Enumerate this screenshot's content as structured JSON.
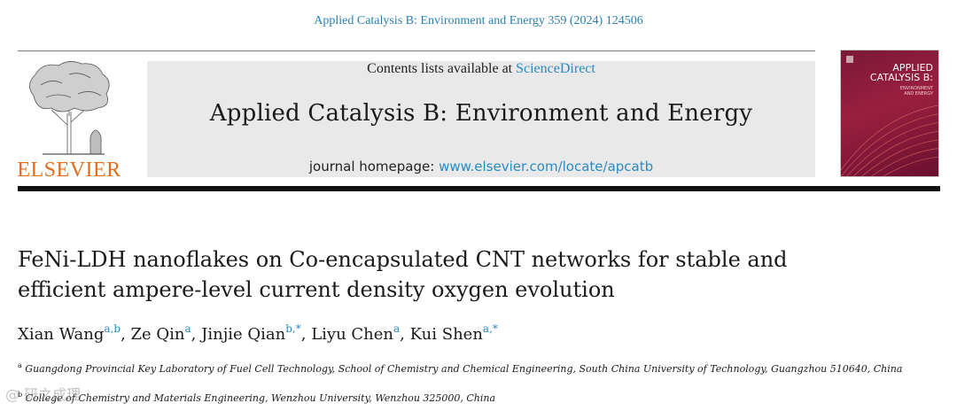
{
  "running_head": "Applied Catalysis B: Environment and Energy 359 (2024) 124506",
  "publisher": {
    "wordmark": "ELSEVIER"
  },
  "masthead": {
    "contents_prefix": "Contents lists available at ",
    "contents_link": "ScienceDirect",
    "journal_name": "Applied Catalysis B: Environment and Energy",
    "homepage_prefix": "journal homepage: ",
    "homepage_link": "www.elsevier.com/locate/apcatb"
  },
  "cover": {
    "title_line1": "APPLIED",
    "title_line2": "CATALYSIS B:",
    "subtitle_line1": "ENVIRONMENT",
    "subtitle_line2": "AND ENERGY",
    "background": "#8f1c3b"
  },
  "article": {
    "title_line1": "FeNi-LDH nanoflakes on Co-encapsulated CNT networks for stable and",
    "title_line2": "efficient ampere-level current density oxygen evolution"
  },
  "authors": [
    {
      "name": "Xian Wang",
      "marks": "a,b"
    },
    {
      "name": "Ze Qin",
      "marks": "a"
    },
    {
      "name": "Jinjie Qian",
      "marks": "b,*"
    },
    {
      "name": "Liyu Chen",
      "marks": "a"
    },
    {
      "name": "Kui Shen",
      "marks": "a,*"
    }
  ],
  "affiliations": [
    {
      "mark": "a",
      "text": "Guangdong Provincial Key Laboratory of Fuel Cell Technology, School of Chemistry and Chemical Engineering, South China University of Technology, Guangzhou 510640, China"
    },
    {
      "mark": "b",
      "text": "College of Chemistry and Materials Engineering, Wenzhou University, Wenzhou 325000, China"
    }
  ],
  "watermark": "@ 研之成理"
}
